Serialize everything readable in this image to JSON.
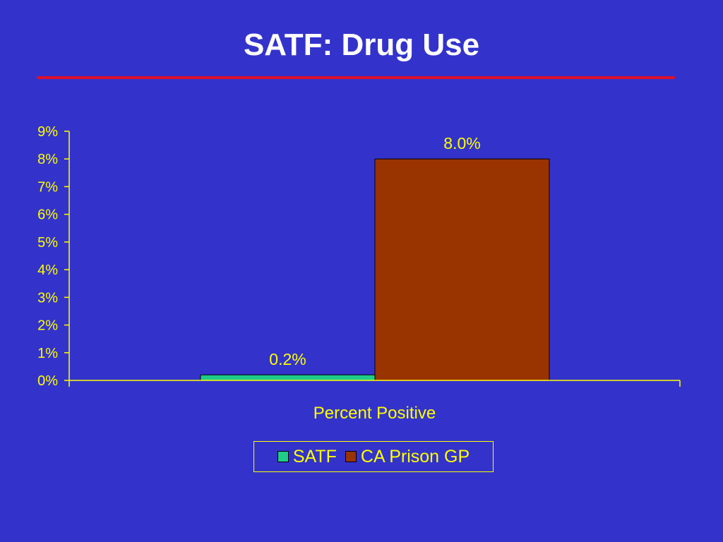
{
  "slide": {
    "title": "SATF: Drug Use",
    "title_color": "#ffffff",
    "rule_color": "#e0102a",
    "background": "#3333cc"
  },
  "chart_data": {
    "type": "bar",
    "categories": [
      "Percent Positive"
    ],
    "xlabel": "Percent Positive",
    "ylabel": "",
    "ylim": [
      0,
      9
    ],
    "yticks": [
      "0%",
      "1%",
      "2%",
      "3%",
      "4%",
      "5%",
      "6%",
      "7%",
      "8%",
      "9%"
    ],
    "grid": false,
    "legend": "bottom",
    "text_color": "#ffff00",
    "series": [
      {
        "name": "SATF",
        "values": [
          0.2
        ],
        "label": "0.2%",
        "color": "#1fcc88"
      },
      {
        "name": "CA Prison GP",
        "values": [
          8.0
        ],
        "label": "8.0%",
        "color": "#993300"
      }
    ]
  }
}
